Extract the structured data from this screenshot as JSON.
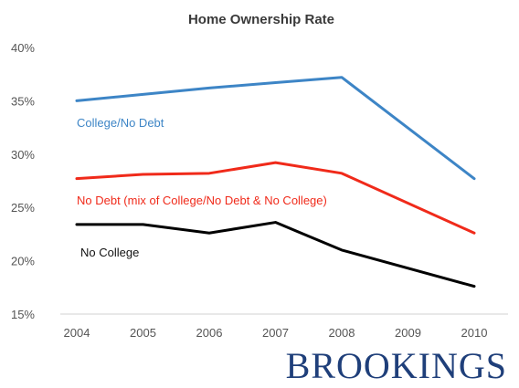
{
  "chart_data": {
    "type": "line",
    "title": "Home Ownership Rate",
    "x": [
      "2004",
      "2005",
      "2006",
      "2007",
      "2008",
      "2009",
      "2010"
    ],
    "ylim": [
      15,
      40
    ],
    "yticks": [
      "15%",
      "20%",
      "25%",
      "30%",
      "35%",
      "40%"
    ],
    "ytick_values": [
      15,
      20,
      25,
      30,
      35,
      40
    ],
    "grid": false,
    "series": [
      {
        "name": "College/No Debt",
        "color": "#3d85c6",
        "values": [
          35.0,
          35.6,
          36.2,
          36.7,
          37.2,
          null,
          27.7
        ]
      },
      {
        "name": "No Debt (mix of College/No Debt & No College)",
        "color": "#f02a1a",
        "values": [
          27.7,
          28.1,
          28.2,
          29.2,
          28.2,
          null,
          22.6
        ]
      },
      {
        "name": "No College",
        "color": "#000000",
        "values": [
          23.4,
          23.4,
          22.6,
          23.6,
          21.0,
          null,
          17.6
        ]
      }
    ]
  },
  "brand": "BROOKINGS"
}
